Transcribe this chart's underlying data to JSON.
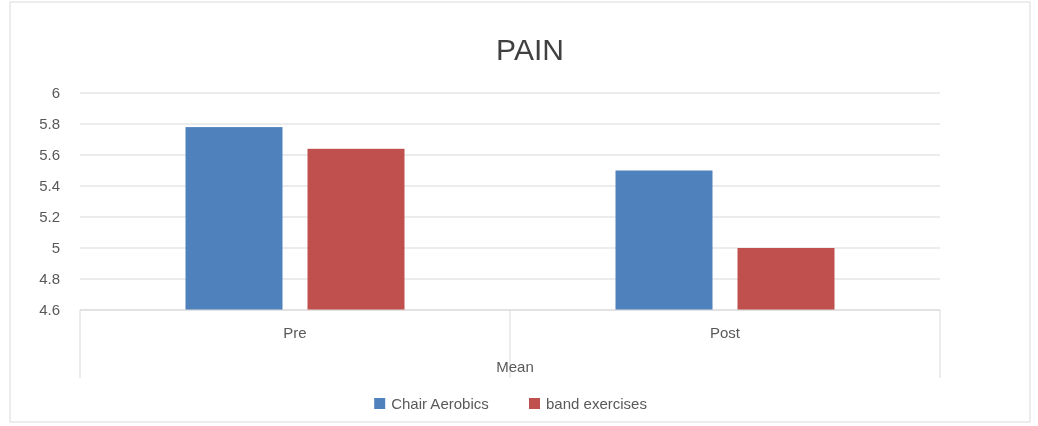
{
  "chart_data": {
    "type": "bar",
    "title": "PAIN",
    "xlabel": "Mean",
    "categories": [
      "Pre",
      "Post"
    ],
    "series": [
      {
        "name": "Chair Aerobics",
        "color": "#4f81bd",
        "values": [
          5.78,
          5.5
        ]
      },
      {
        "name": "band exercises",
        "color": "#c0504d",
        "values": [
          5.64,
          5.0
        ]
      }
    ],
    "ylim": [
      4.6,
      6
    ],
    "yticks": [
      4.6,
      4.8,
      5,
      5.2,
      5.4,
      5.6,
      5.8,
      6
    ],
    "grid": "y",
    "legend": "bottom"
  }
}
